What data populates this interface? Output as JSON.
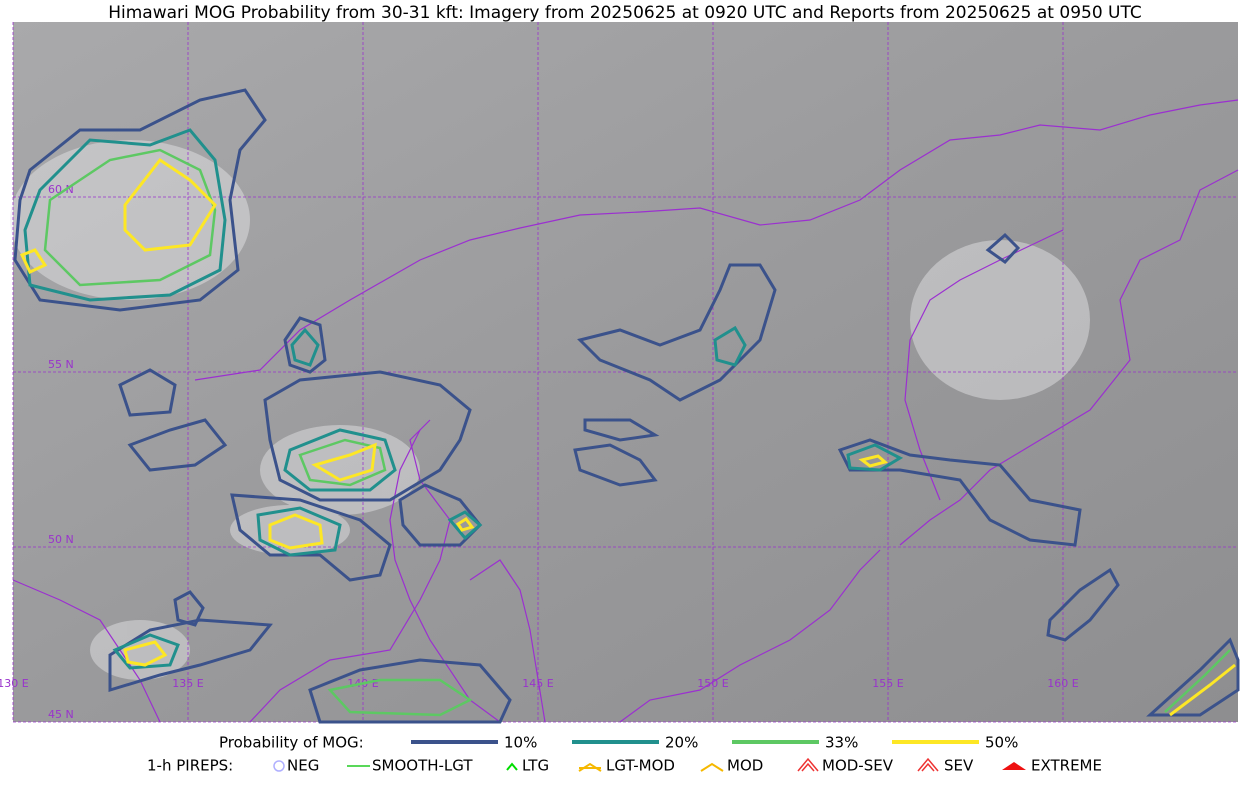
{
  "title": "Himawari MOG Probability from 30-31 kft: Imagery from 20250625 at 0920 UTC and Reports from 20250625 at 0950 UTC",
  "grid_labels": {
    "lat": [
      "60 N",
      "55 N",
      "50 N",
      "45 N"
    ],
    "lon": [
      "130 E",
      "135 E",
      "140 E",
      "145 E",
      "150 E",
      "155 E",
      "160 E"
    ]
  },
  "legend": {
    "probability": {
      "label": "Probability of MOG:",
      "items": [
        {
          "label": "10%",
          "color": "#3b528b"
        },
        {
          "label": "20%",
          "color": "#21908d"
        },
        {
          "label": "33%",
          "color": "#5dc863"
        },
        {
          "label": "50%",
          "color": "#fde725"
        }
      ]
    },
    "pireps": {
      "label": "1-h PIREPS:",
      "items": [
        {
          "label": "NEG",
          "color": "#b0b0ff"
        },
        {
          "label": "SMOOTH-LGT",
          "color": "#22cc22"
        },
        {
          "label": "LTG",
          "color": "#00dd00"
        },
        {
          "label": "LGT-MOD",
          "color": "#f5b800"
        },
        {
          "label": "MOD",
          "color": "#f5b800"
        },
        {
          "label": "MOD-SEV",
          "color": "#ee3333"
        },
        {
          "label": "SEV",
          "color": "#ee3333"
        },
        {
          "label": "EXTREME",
          "color": "#ee1111"
        }
      ]
    }
  }
}
